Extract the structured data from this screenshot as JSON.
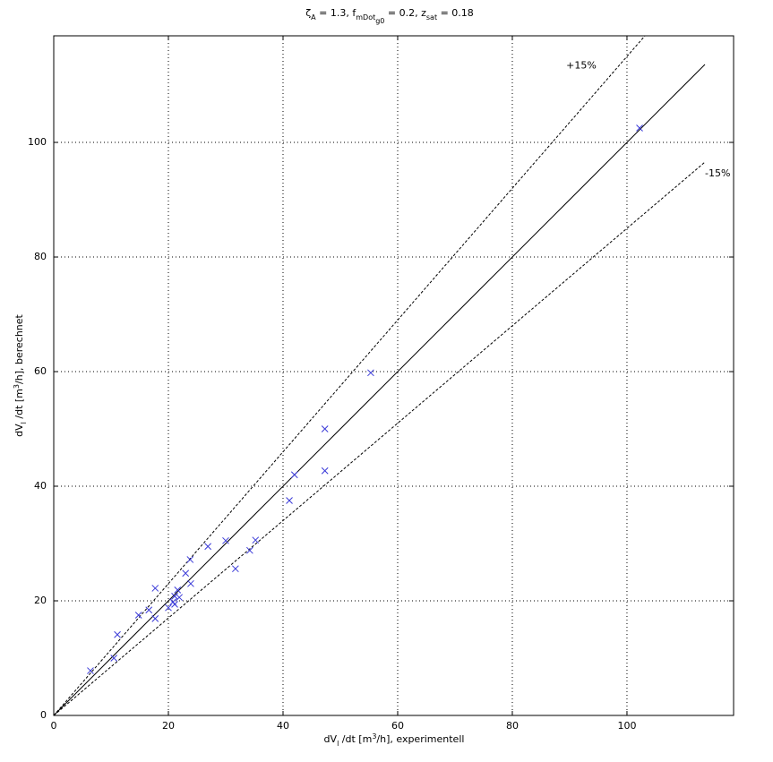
{
  "chart_data": {
    "type": "scatter",
    "title_parts": [
      "ζ",
      "A",
      " = 1.3, f",
      "mDot",
      "g0",
      " = 0.2, z",
      "sat",
      " = 0.18"
    ],
    "xlabel_parts": [
      "dV",
      "l",
      " /dt [m",
      "3",
      "/h], experimentell"
    ],
    "ylabel_parts": [
      "dV",
      "l",
      " /dt [m",
      "3",
      "/h], berechnet"
    ],
    "x": [
      102.2,
      55.3,
      47.3,
      47.3,
      42.0,
      41.1,
      35.2,
      34.2,
      30.0,
      31.7,
      26.9,
      23.8,
      23.0,
      23.9,
      21.6,
      21.1,
      21.9,
      20.8,
      21.1,
      20.0,
      17.7,
      17.7,
      16.6,
      14.8,
      11.1,
      10.5,
      6.4
    ],
    "values": [
      102.5,
      59.8,
      50.0,
      42.7,
      42.0,
      37.5,
      30.6,
      28.8,
      30.5,
      25.6,
      29.5,
      27.2,
      24.8,
      23.0,
      21.9,
      20.8,
      20.6,
      19.8,
      19.4,
      18.8,
      22.2,
      16.9,
      18.4,
      17.5,
      14.1,
      10.0,
      7.8
    ],
    "color": "#3a3ad8",
    "xlim": [
      0,
      118.6
    ],
    "ylim": [
      0,
      118.6
    ],
    "xticks": [
      0,
      20,
      40,
      60,
      80,
      100
    ],
    "yticks": [
      0,
      20,
      40,
      60,
      80,
      100
    ],
    "grid": true,
    "reference_lines": [
      {
        "slope": 1,
        "x_end": 113.6,
        "style": "solid"
      },
      {
        "slope": 1.15,
        "x_end": 113.6,
        "style": "dashed",
        "label": "+15%",
        "label_at": [
          89.4,
          113.4
        ]
      },
      {
        "slope": 0.85,
        "x_end": 113.6,
        "style": "dashed",
        "label": "-15%",
        "label_at": [
          113.6,
          94.5
        ]
      }
    ]
  }
}
